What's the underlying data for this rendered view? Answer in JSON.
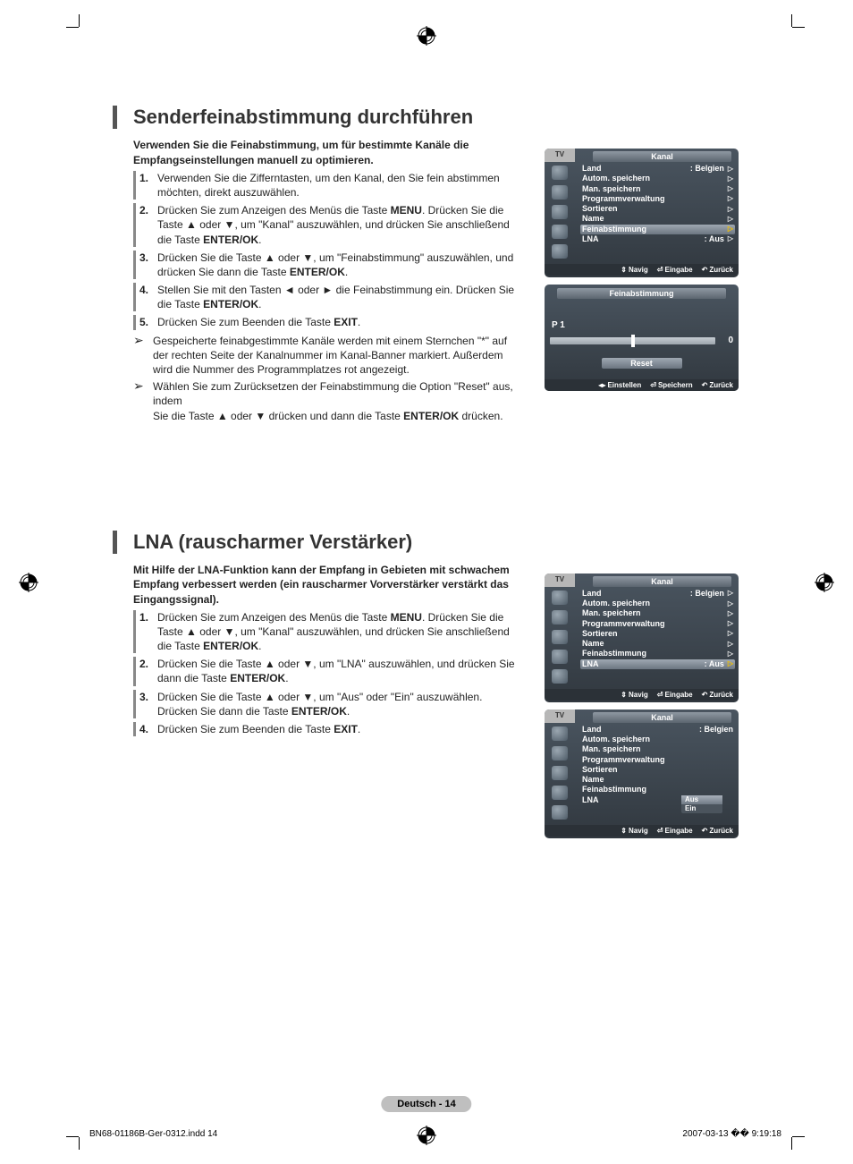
{
  "page": {
    "badge": "Deutsch - 14",
    "footer_left": "BN68-01186B-Ger-0312.indd   14",
    "footer_right": "2007-03-13   �� 9:19:18"
  },
  "section1": {
    "title": "Senderfeinabstimmung durchführen",
    "intro": "Verwenden Sie die Feinabstimmung, um für bestimmte Kanäle die Empfangseinstellungen manuell zu optimieren.",
    "steps": [
      {
        "n": "1.",
        "html": "Verwenden Sie die Zifferntasten, um den Kanal, den Sie fein abstimmen möchten, direkt auszuwählen."
      },
      {
        "n": "2.",
        "html": "Drücken Sie zum Anzeigen des Menüs die Taste <b>MENU</b>. Drücken Sie die Taste ▲ oder ▼, um \"Kanal\" auszuwählen, und drücken Sie anschließend die Taste <b>ENTER/OK</b>."
      },
      {
        "n": "3.",
        "html": "Drücken Sie die Taste ▲ oder ▼, um \"Feinabstimmung\" auszuwählen, und drücken Sie dann die Taste <b>ENTER/OK</b>."
      },
      {
        "n": "4.",
        "html": "Stellen Sie mit den Tasten ◄ oder ► die Feinabstimmung ein. Drücken Sie die Taste <b>ENTER/OK</b>."
      },
      {
        "n": "5.",
        "html": "Drücken Sie zum Beenden die Taste <b>EXIT</b>."
      }
    ],
    "notes": [
      "Gespeicherte feinabgestimmte Kanäle werden mit einem Sternchen \"*\" auf der rechten Seite der Kanalnummer im Kanal-Banner markiert. Außerdem wird die Nummer des Programmplatzes rot angezeigt.",
      "Wählen Sie zum Zurücksetzen der Feinabstimmung die Option \"Reset\" aus, indem<br>Sie die Taste ▲ oder ▼ drücken und dann die Taste <b>ENTER/OK</b> drücken."
    ],
    "osd1": {
      "tv": "TV",
      "header": "Kanal",
      "rows": [
        {
          "label": "Land",
          "value": ": Belgien",
          "tri": true
        },
        {
          "label": "Autom. speichern",
          "value": "",
          "tri": true
        },
        {
          "label": "Man. speichern",
          "value": "",
          "tri": true
        },
        {
          "label": "Programmverwaltung",
          "value": "",
          "tri": true
        },
        {
          "label": "Sortieren",
          "value": "",
          "tri": true
        },
        {
          "label": "Name",
          "value": "",
          "tri": true
        },
        {
          "label": "Feinabstimmung",
          "value": "",
          "tri": true,
          "selected": true
        },
        {
          "label": "LNA",
          "value": ": Aus",
          "tri": true
        }
      ],
      "footer": [
        {
          "g": "⇕",
          "t": "Navig"
        },
        {
          "g": "⏎",
          "t": "Eingabe"
        },
        {
          "g": "↶",
          "t": "Zurück"
        }
      ]
    },
    "osd2": {
      "header": "Feinabstimmung",
      "p1": "P 1",
      "slider_value": "0",
      "reset": "Reset",
      "footer": [
        {
          "g": "◂▸",
          "t": "Einstellen"
        },
        {
          "g": "⏎",
          "t": "Speichern"
        },
        {
          "g": "↶",
          "t": "Zurück"
        }
      ]
    }
  },
  "section2": {
    "title": "LNA (rauscharmer Verstärker)",
    "intro": "Mit Hilfe der LNA-Funktion kann der Empfang in Gebieten mit schwachem Empfang verbessert werden (ein rauscharmer Vorverstärker verstärkt das Eingangssignal).",
    "steps": [
      {
        "n": "1.",
        "html": "Drücken Sie zum Anzeigen des Menüs die Taste <b>MENU</b>. Drücken Sie die Taste ▲ oder ▼, um \"Kanal\" auszuwählen, und drücken Sie anschließend die Taste <b>ENTER/OK</b>."
      },
      {
        "n": "2.",
        "html": "Drücken Sie die Taste ▲ oder ▼, um \"LNA\" auszuwählen, und drücken Sie dann die Taste <b>ENTER/OK</b>."
      },
      {
        "n": "3.",
        "html": "Drücken Sie die Taste ▲ oder ▼, um \"Aus\" oder \"Ein\" auszuwählen.<br>Drücken Sie dann die Taste <b>ENTER/OK</b>."
      },
      {
        "n": "4.",
        "html": "Drücken Sie zum Beenden die Taste <b>EXIT</b>."
      }
    ],
    "osd1": {
      "tv": "TV",
      "header": "Kanal",
      "rows": [
        {
          "label": "Land",
          "value": ": Belgien",
          "tri": true
        },
        {
          "label": "Autom. speichern",
          "value": "",
          "tri": true
        },
        {
          "label": "Man. speichern",
          "value": "",
          "tri": true
        },
        {
          "label": "Programmverwaltung",
          "value": "",
          "tri": true
        },
        {
          "label": "Sortieren",
          "value": "",
          "tri": true
        },
        {
          "label": "Name",
          "value": "",
          "tri": true
        },
        {
          "label": "Feinabstimmung",
          "value": "",
          "tri": true
        },
        {
          "label": "LNA",
          "value": ": Aus",
          "tri": true,
          "selected": true
        }
      ],
      "footer": [
        {
          "g": "⇕",
          "t": "Navig"
        },
        {
          "g": "⏎",
          "t": "Eingabe"
        },
        {
          "g": "↶",
          "t": "Zurück"
        }
      ]
    },
    "osd2": {
      "tv": "TV",
      "header": "Kanal",
      "rows": [
        {
          "label": "Land",
          "value": ": Belgien",
          "tri": false
        },
        {
          "label": "Autom. speichern",
          "value": "",
          "tri": false
        },
        {
          "label": "Man. speichern",
          "value": "",
          "tri": false
        },
        {
          "label": "Programmverwaltung",
          "value": "",
          "tri": false
        },
        {
          "label": "Sortieren",
          "value": "",
          "tri": false
        },
        {
          "label": "Name",
          "value": "",
          "tri": false
        },
        {
          "label": "Feinabstimmung",
          "value": "",
          "tri": false
        },
        {
          "label": "LNA",
          "value": "",
          "tri": false
        }
      ],
      "popup": {
        "options": [
          "Aus",
          "Ein"
        ],
        "selected": 0
      },
      "footer": [
        {
          "g": "⇕",
          "t": "Navig"
        },
        {
          "g": "⏎",
          "t": "Eingabe"
        },
        {
          "g": "↶",
          "t": "Zurück"
        }
      ]
    }
  },
  "colors": {
    "accent_border": "#555555",
    "osd_bg_top": "#4a5560",
    "osd_bg_bottom": "#31383f",
    "osd_sel_top": "#9fa8b2",
    "osd_sel_bottom": "#6c7681",
    "badge_bg": "#bfbfbf"
  }
}
